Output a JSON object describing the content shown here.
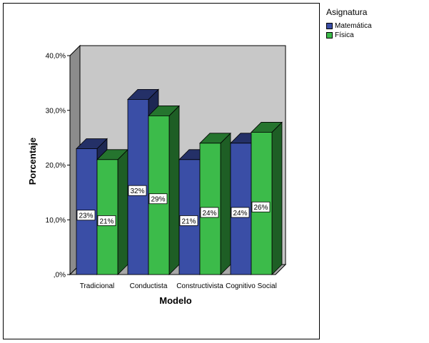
{
  "chart_data": {
    "type": "bar",
    "xlabel": "Modelo",
    "ylabel": "Porcentaje",
    "ylim": [
      0,
      40
    ],
    "yticks": [
      "40,0%",
      "30,0%",
      "20,0%",
      "10,0%",
      ",0%"
    ],
    "ytick_values": [
      40,
      30,
      20,
      10,
      0
    ],
    "categories": [
      "Tradicional",
      "Conductista",
      "Constructivista",
      "Cognitivo Social"
    ],
    "legend_title": "Asignatura",
    "legend_position": "top-right",
    "series": [
      {
        "name": "Matemática",
        "color": "#3a4ea6",
        "values": [
          23,
          32,
          21,
          24
        ],
        "labels": [
          "23%",
          "32%",
          "21%",
          "24%"
        ]
      },
      {
        "name": "Física",
        "color": "#3cbb4a",
        "values": [
          21,
          29,
          24,
          26
        ],
        "labels": [
          "21%",
          "29%",
          "24%",
          "26%"
        ]
      }
    ],
    "grid": false,
    "style": "3d"
  }
}
